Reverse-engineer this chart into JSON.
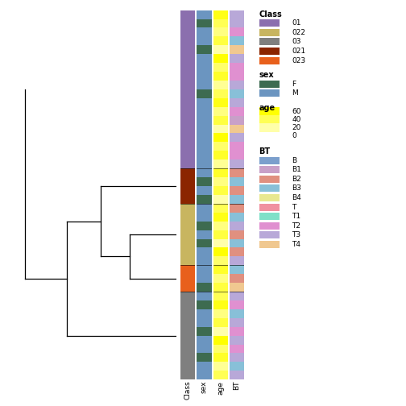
{
  "clusters": [
    {
      "name": "01",
      "color": "#8B6FAE",
      "n_rows": 18
    },
    {
      "name": "021",
      "color": "#8B2500",
      "n_rows": 4
    },
    {
      "name": "022",
      "color": "#C8B560",
      "n_rows": 7
    },
    {
      "name": "023",
      "color": "#E8601C",
      "n_rows": 3
    },
    {
      "name": "03",
      "color": "#7F7F7F",
      "n_rows": 10
    }
  ],
  "class_colors": {
    "01": "#8B6FAE",
    "022": "#C8B560",
    "03": "#7F7F7F",
    "021": "#8B2500",
    "023": "#E8601C"
  },
  "sex_colors": {
    "F": "#3D6B50",
    "M": "#6B95C0"
  },
  "bt_colors": {
    "B": "#7B9FCC",
    "B1": "#C8A0C8",
    "B2": "#E09080",
    "B3": "#88C0D8",
    "B4": "#E8E890",
    "T": "#F090A0",
    "T1": "#80E0C8",
    "T2": "#E090D0",
    "T3": "#B8A8D8",
    "T4": "#F0C890"
  },
  "legend_class": {
    "01": "#8B6FAE",
    "022": "#C8B560",
    "03": "#7F7F7F",
    "021": "#8B2500",
    "023": "#E8601C"
  },
  "legend_sex": {
    "F": "#3D6B50",
    "M": "#6B95C0"
  },
  "legend_bt": {
    "B": "#7B9FCC",
    "B1": "#C8A0C8",
    "B2": "#E09080",
    "B3": "#88C0D8",
    "B4": "#E8E890",
    "T": "#F090A0",
    "T1": "#80E0C8",
    "T2": "#E090D0",
    "T3": "#B8A8D8",
    "T4": "#F0C890"
  },
  "sex_data": {
    "01": [
      "M",
      "F",
      "M",
      "M",
      "F",
      "M",
      "M",
      "M",
      "M",
      "F",
      "M",
      "M",
      "M",
      "M",
      "M",
      "M",
      "M",
      "M"
    ],
    "021": [
      "M",
      "F",
      "M",
      "F"
    ],
    "022": [
      "M",
      "M",
      "F",
      "M",
      "F",
      "M",
      "M"
    ],
    "023": [
      "M",
      "M",
      "F"
    ],
    "03": [
      "M",
      "F",
      "M",
      "M",
      "F",
      "M",
      "M",
      "F",
      "M",
      "M"
    ]
  },
  "age_data": {
    "01": [
      55,
      40,
      30,
      45,
      20,
      60,
      35,
      50,
      25,
      40,
      55,
      30,
      45,
      20,
      60,
      35,
      50,
      25
    ],
    "021": [
      50,
      30,
      45,
      20
    ],
    "022": [
      40,
      55,
      30,
      45,
      20,
      60,
      35
    ],
    "023": [
      50,
      30,
      45
    ],
    "03": [
      40,
      55,
      30,
      45,
      20,
      60,
      35,
      50,
      25,
      40
    ]
  },
  "bt_data": {
    "01": [
      "T3",
      "T3",
      "T2",
      "B3",
      "T4",
      "T3",
      "T2",
      "T2",
      "T3",
      "B3",
      "T3",
      "T2",
      "B1",
      "T4",
      "T3",
      "T2",
      "T2",
      "T3"
    ],
    "021": [
      "B2",
      "B3",
      "B2",
      "B3"
    ],
    "022": [
      "B2",
      "B3",
      "T3",
      "B2",
      "B3",
      "B2",
      "T3"
    ],
    "023": [
      "B3",
      "B2",
      "T4"
    ],
    "03": [
      "T3",
      "T2",
      "B3",
      "T3",
      "T2",
      "T3",
      "T2",
      "T3",
      "B3",
      "T3"
    ]
  },
  "bg_color": "#FFFFFF",
  "fig_w": 5.04,
  "fig_h": 5.04
}
